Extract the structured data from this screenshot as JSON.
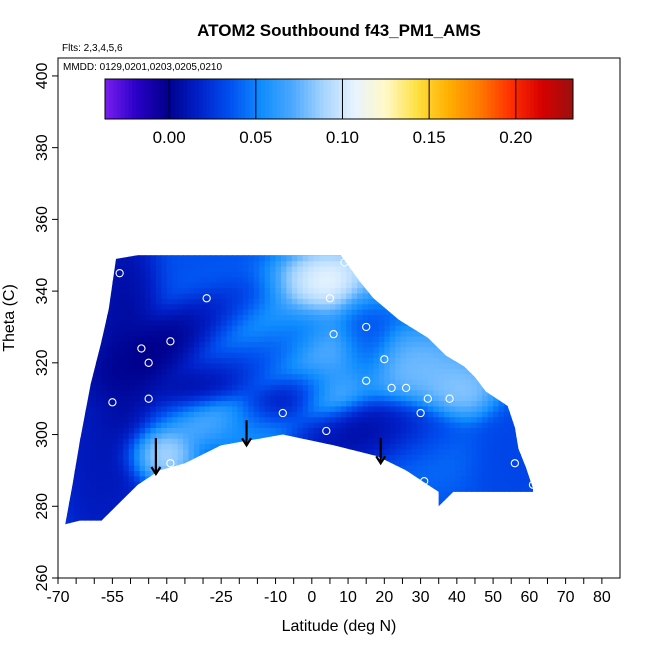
{
  "chart_data": {
    "type": "heatmap",
    "title": "ATOM2 Southbound f43_PM1_AMS",
    "subtitle_flights": "Flts: 2,3,4,5,6",
    "subtitle_dates": "MMDD: 0129,0201,0203,0205,0210",
    "xlabel": "Latitude (deg N)",
    "ylabel": "Theta (C)",
    "xlim": [
      -70,
      85
    ],
    "ylim": [
      260,
      405
    ],
    "x_ticks": [
      -70,
      -55,
      -40,
      -25,
      -10,
      0,
      10,
      20,
      30,
      40,
      50,
      60,
      70,
      80
    ],
    "x_tick_labels": [
      "-70",
      "-55",
      "-40",
      "-25",
      "-10",
      "0",
      "10",
      "20",
      "30",
      "40",
      "50",
      "60",
      "70",
      "80"
    ],
    "x_minor_ticks": [
      -65,
      -60,
      -50,
      -45,
      -35,
      -30,
      -20,
      -15,
      -5,
      5,
      15,
      25,
      35,
      45,
      55,
      65,
      75
    ],
    "y_ticks": [
      260,
      280,
      300,
      320,
      340,
      360,
      380,
      400
    ],
    "y_tick_labels": [
      "260",
      "280",
      "300",
      "320",
      "340",
      "360",
      "380",
      "400"
    ],
    "colorbar": {
      "range": [
        -0.037,
        0.233
      ],
      "ticks": [
        0.0,
        0.05,
        0.1,
        0.15,
        0.2
      ],
      "tick_labels": [
        "0.00",
        "0.05",
        "0.10",
        "0.15",
        "0.20"
      ],
      "colors": [
        "#7a1ff0",
        "#2a00c8",
        "#00008c",
        "#0020c8",
        "#0050f0",
        "#0f8cff",
        "#4aa8ff",
        "#a6d4ff",
        "#e8f4ff",
        "#fff8c8",
        "#ffe040",
        "#ffb000",
        "#ff7a00",
        "#ff3000",
        "#d80000",
        "#9a1010"
      ]
    },
    "field_boundary": {
      "top": [
        [
          -54,
          349
        ],
        [
          -48,
          350
        ],
        [
          -25,
          350
        ],
        [
          8,
          350
        ],
        [
          13,
          343
        ],
        [
          17,
          338
        ],
        [
          24,
          332
        ],
        [
          32,
          327
        ],
        [
          37,
          322
        ],
        [
          42,
          319
        ],
        [
          45,
          316
        ],
        [
          48,
          312
        ],
        [
          54,
          308
        ],
        [
          56,
          302
        ],
        [
          57,
          296
        ],
        [
          59,
          291
        ],
        [
          61,
          285
        ]
      ],
      "bottom": [
        [
          -68,
          275
        ],
        [
          -64,
          276
        ],
        [
          -58,
          276
        ],
        [
          -54,
          280
        ],
        [
          -48,
          286
        ],
        [
          -42,
          290
        ],
        [
          -35,
          292
        ],
        [
          -25,
          297
        ],
        [
          -8,
          300
        ],
        [
          6,
          297
        ],
        [
          18,
          294
        ],
        [
          26,
          290
        ],
        [
          32,
          286
        ],
        [
          35,
          284
        ],
        [
          35,
          280
        ],
        [
          39,
          284
        ],
        [
          61,
          284
        ]
      ],
      "left": [
        [
          -68,
          275
        ],
        [
          -66,
          286
        ],
        [
          -64,
          298
        ],
        [
          -61,
          314
        ],
        [
          -58,
          326
        ],
        [
          -56,
          335
        ],
        [
          -54,
          349
        ]
      ]
    },
    "field_anomalies": [
      {
        "lat": -38,
        "theta": 326,
        "value": -0.01,
        "spread_lat": 13,
        "spread_theta": 5,
        "tilt": 0.45
      },
      {
        "lat": -22,
        "theta": 318,
        "value": -0.005,
        "spread_lat": 14,
        "spread_theta": 5,
        "tilt": 0.45
      },
      {
        "lat": -8,
        "theta": 310,
        "value": 0.0,
        "spread_lat": 10,
        "spread_theta": 4,
        "tilt": 0.45
      },
      {
        "lat": 12,
        "theta": 301,
        "value": 0.0,
        "spread_lat": 9,
        "spread_theta": 4,
        "tilt": 0
      },
      {
        "lat": 22,
        "theta": 301,
        "value": 0.005,
        "spread_lat": 8,
        "spread_theta": 5,
        "tilt": 0
      },
      {
        "lat": -52,
        "theta": 322,
        "value": 0.0,
        "spread_lat": 5,
        "spread_theta": 20,
        "tilt": 0
      },
      {
        "lat": -60,
        "theta": 292,
        "value": 0.01,
        "spread_lat": 5,
        "spread_theta": 14,
        "tilt": 0
      },
      {
        "lat": 14,
        "theta": 328,
        "value": 0.03,
        "spread_lat": 4,
        "spread_theta": 8,
        "tilt": 0
      },
      {
        "lat": 56,
        "theta": 296,
        "value": 0.03,
        "spread_lat": 6,
        "spread_theta": 10,
        "tilt": 0
      },
      {
        "lat": -42,
        "theta": 295,
        "value": 0.1,
        "spread_lat": 5,
        "spread_theta": 4,
        "tilt": 0
      },
      {
        "lat": -25,
        "theta": 304,
        "value": 0.085,
        "spread_lat": 10,
        "spread_theta": 4,
        "tilt": 0
      },
      {
        "lat": -12,
        "theta": 325,
        "value": 0.075,
        "spread_lat": 12,
        "spread_theta": 8,
        "tilt": 0
      },
      {
        "lat": 5,
        "theta": 318,
        "value": 0.09,
        "spread_lat": 6,
        "spread_theta": 8,
        "tilt": 0
      },
      {
        "lat": 5,
        "theta": 342,
        "value": 0.12,
        "spread_lat": 8,
        "spread_theta": 5,
        "tilt": 0
      },
      {
        "lat": 30,
        "theta": 318,
        "value": 0.085,
        "spread_lat": 9,
        "spread_theta": 6,
        "tilt": 0
      },
      {
        "lat": 42,
        "theta": 312,
        "value": 0.09,
        "spread_lat": 6,
        "spread_theta": 4,
        "tilt": 0
      },
      {
        "lat": 30,
        "theta": 296,
        "value": 0.045,
        "spread_lat": 8,
        "spread_theta": 6,
        "tilt": 0
      }
    ],
    "field_background": 0.035,
    "sample_points": [
      [
        -53,
        345
      ],
      [
        -47,
        324
      ],
      [
        -45,
        320
      ],
      [
        -45,
        310
      ],
      [
        -55,
        309
      ],
      [
        -39,
        326
      ],
      [
        -29,
        338
      ],
      [
        -39,
        292
      ],
      [
        -8,
        306
      ],
      [
        4,
        301
      ],
      [
        5,
        338
      ],
      [
        6,
        328
      ],
      [
        9,
        348
      ],
      [
        15,
        330
      ],
      [
        15,
        315
      ],
      [
        20,
        321
      ],
      [
        22,
        313
      ],
      [
        26,
        313
      ],
      [
        30,
        306
      ],
      [
        32,
        310
      ],
      [
        38,
        310
      ],
      [
        31,
        287
      ],
      [
        56,
        292
      ],
      [
        61,
        286
      ]
    ],
    "arrows": [
      {
        "lat": -43,
        "theta_top": 299,
        "theta_tip": 289
      },
      {
        "lat": -18,
        "theta_top": 304,
        "theta_tip": 297
      },
      {
        "lat": 19,
        "theta_top": 299,
        "theta_tip": 292
      }
    ]
  }
}
